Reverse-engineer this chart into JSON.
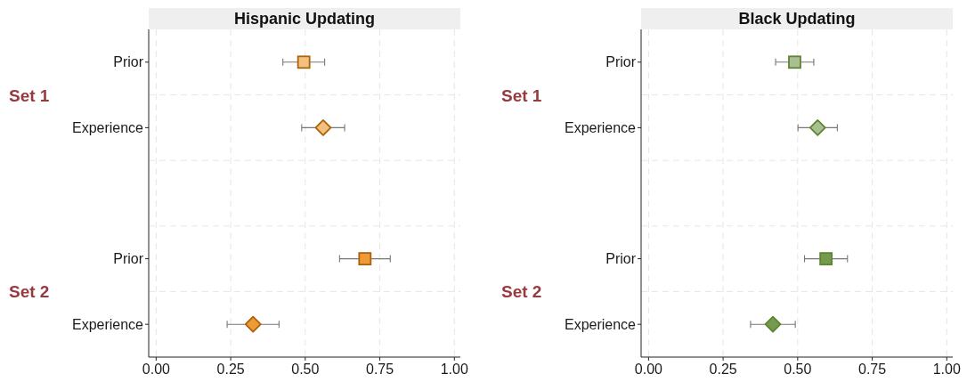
{
  "chart_data": [
    {
      "type": "scatter",
      "title": "Hispanic Updating",
      "orientation": "horizontal",
      "categories": [
        "Prior",
        "Experience",
        null,
        "Prior",
        "Experience"
      ],
      "series": [
        {
          "marker": "square",
          "values": [
            0.495,
            null,
            null,
            0.7,
            null
          ],
          "errors": [
            0.07,
            null,
            null,
            0.085,
            null
          ],
          "colors": [
            "#f5c07e",
            null,
            null,
            "#ef9a35",
            null
          ]
        },
        {
          "marker": "diamond",
          "values": [
            null,
            0.56,
            null,
            null,
            0.325
          ],
          "errors": [
            null,
            0.072,
            null,
            null,
            0.087
          ],
          "colors": [
            null,
            "#f5c07e",
            null,
            null,
            "#ef9a35"
          ]
        }
      ],
      "xlim": [
        -0.025,
        1.02
      ],
      "xticks": [
        {
          "value": 0,
          "label": "0.00"
        },
        {
          "value": 0.25,
          "label": "0.25"
        },
        {
          "value": 0.5,
          "label": "0.50"
        },
        {
          "value": 0.75,
          "label": "0.75"
        },
        {
          "value": 1,
          "label": "1.00"
        }
      ],
      "grid": true,
      "annotations": [
        "Set 1",
        "Set 2"
      ]
    },
    {
      "type": "scatter",
      "title": "Black Updating",
      "orientation": "horizontal",
      "categories": [
        "Prior",
        "Experience",
        null,
        "Prior",
        "Experience"
      ],
      "series": [
        {
          "marker": "square",
          "values": [
            0.49,
            null,
            null,
            0.595,
            null
          ],
          "errors": [
            0.064,
            null,
            null,
            0.072,
            null
          ],
          "colors": [
            "#a9bf91",
            null,
            null,
            "#76994f",
            null
          ]
        },
        {
          "marker": "diamond",
          "values": [
            null,
            0.567,
            null,
            null,
            0.417
          ],
          "errors": [
            null,
            0.066,
            null,
            null,
            0.075
          ],
          "colors": [
            null,
            "#a9bf91",
            null,
            null,
            "#76994f"
          ]
        }
      ],
      "xlim": [
        -0.025,
        1.02
      ],
      "xticks": [
        {
          "value": 0,
          "label": "0.00"
        },
        {
          "value": 0.25,
          "label": "0.25"
        },
        {
          "value": 0.5,
          "label": "0.50"
        },
        {
          "value": 0.75,
          "label": "0.75"
        },
        {
          "value": 1,
          "label": "1.00"
        }
      ],
      "grid": true,
      "annotations": [
        "Set 1",
        "Set 2"
      ]
    }
  ]
}
